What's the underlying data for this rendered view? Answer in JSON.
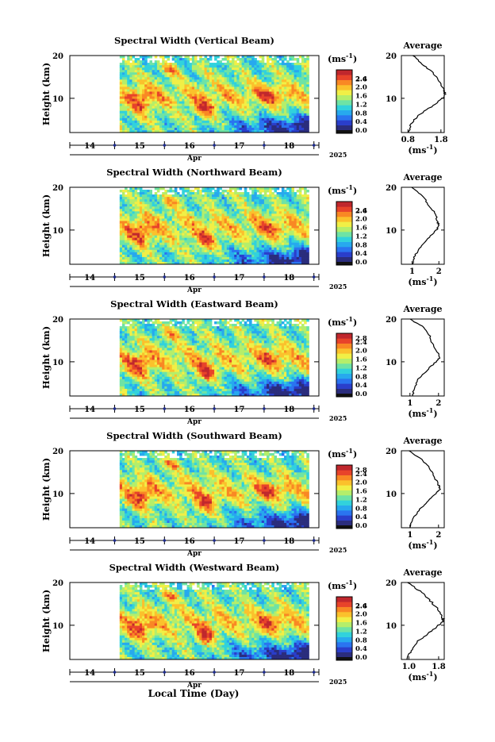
{
  "footer": {
    "xlabel": "Local Time (Day)"
  },
  "colorbar_unit": "(ms",
  "colorbar_unit_exp": "-1",
  "avg_title": "Average",
  "avg_xlabel": "(ms",
  "avg_xlabel_exp": "-1",
  "month_label": "Apr",
  "year_label": "2025",
  "y_axis_label": "Height (km)",
  "chart_data": [
    {
      "type": "heatmap",
      "title": "Spectral Width (Vertical Beam)",
      "ylabel": "Height (km)",
      "ylim": [
        2,
        20
      ],
      "yticks": [
        "20",
        "10"
      ],
      "xticks": [
        "14",
        "15",
        "16",
        "17",
        "18"
      ],
      "xlim": [
        13.6,
        18.6
      ],
      "data_start": 14.6,
      "data_end": 18.4,
      "colorbar": {
        "ticks": [
          "2.6",
          "2.4",
          "2.0",
          "1.6",
          "1.2",
          "0.8",
          "0.4",
          "0.0"
        ],
        "range": [
          0.0,
          2.8
        ]
      },
      "average_profile": {
        "xlim": [
          0.6,
          1.9
        ],
        "xticks": [
          "0.8",
          "1.8"
        ],
        "yticks": [
          "20",
          "10"
        ],
        "heights": [
          20,
          18,
          16,
          14,
          12,
          11,
          10,
          8,
          6,
          4,
          2
        ],
        "values": [
          0.95,
          1.25,
          1.55,
          1.75,
          1.9,
          1.92,
          1.85,
          1.5,
          1.1,
          0.9,
          0.8
        ]
      }
    },
    {
      "type": "heatmap",
      "title": "Spectral Width (Northward Beam)",
      "ylabel": "Height (km)",
      "ylim": [
        2,
        20
      ],
      "yticks": [
        "20",
        "10"
      ],
      "xticks": [
        "14",
        "15",
        "16",
        "17",
        "18"
      ],
      "xlim": [
        13.6,
        18.6
      ],
      "data_start": 14.6,
      "data_end": 18.4,
      "colorbar": {
        "ticks": [
          "2.6",
          "2.4",
          "2.0",
          "1.6",
          "1.2",
          "0.8",
          "0.4",
          "0.0"
        ],
        "range": [
          0.0,
          2.8
        ]
      },
      "average_profile": {
        "xlim": [
          0.6,
          2.2
        ],
        "xticks": [
          "1",
          "2"
        ],
        "yticks": [
          "20",
          "10"
        ],
        "heights": [
          20,
          18,
          16,
          14,
          12,
          11,
          10,
          8,
          6,
          4,
          2
        ],
        "values": [
          1.0,
          1.4,
          1.6,
          1.85,
          1.95,
          2.0,
          1.9,
          1.6,
          1.3,
          1.1,
          1.0
        ]
      }
    },
    {
      "type": "heatmap",
      "title": "Spectral Width (Eastward Beam)",
      "ylabel": "Height (km)",
      "ylim": [
        2,
        20
      ],
      "yticks": [
        "20",
        "10"
      ],
      "xticks": [
        "14",
        "15",
        "16",
        "17",
        "18"
      ],
      "xlim": [
        13.6,
        18.6
      ],
      "data_start": 14.6,
      "data_end": 18.4,
      "colorbar": {
        "ticks": [
          "2.8",
          "2.4",
          "2.0",
          "1.6",
          "1.2",
          "0.8",
          "0.4",
          "0.0"
        ],
        "range": [
          0.0,
          2.8
        ]
      },
      "average_profile": {
        "xlim": [
          0.7,
          2.2
        ],
        "xticks": [
          "1",
          "2"
        ],
        "yticks": [
          "20",
          "10"
        ],
        "heights": [
          20,
          18,
          16,
          14,
          12,
          11,
          10,
          8,
          6,
          4,
          2
        ],
        "values": [
          1.0,
          1.5,
          1.7,
          1.8,
          2.0,
          2.05,
          1.9,
          1.6,
          1.3,
          1.15,
          1.1
        ]
      }
    },
    {
      "type": "heatmap",
      "title": "Spectral Width (Southward Beam)",
      "ylabel": "Height (km)",
      "ylim": [
        2,
        20
      ],
      "yticks": [
        "20",
        "10"
      ],
      "xticks": [
        "14",
        "15",
        "16",
        "17",
        "18"
      ],
      "xlim": [
        13.6,
        18.6
      ],
      "data_start": 14.6,
      "data_end": 18.4,
      "colorbar": {
        "ticks": [
          "2.8",
          "2.4",
          "2.0",
          "1.6",
          "1.2",
          "0.8",
          "0.4",
          "0.0"
        ],
        "range": [
          0.0,
          2.8
        ]
      },
      "average_profile": {
        "xlim": [
          0.7,
          2.2
        ],
        "xticks": [
          "1",
          "2"
        ],
        "yticks": [
          "20",
          "10"
        ],
        "heights": [
          20,
          18,
          16,
          14,
          12,
          11,
          10,
          8,
          6,
          4,
          2
        ],
        "values": [
          0.95,
          1.4,
          1.7,
          1.85,
          2.0,
          2.05,
          1.9,
          1.6,
          1.3,
          1.1,
          1.0
        ]
      }
    },
    {
      "type": "heatmap",
      "title": "Spectral Width (Westward Beam)",
      "ylabel": "Height (km)",
      "ylim": [
        2,
        20
      ],
      "yticks": [
        "20",
        "10"
      ],
      "xticks": [
        "14",
        "15",
        "16",
        "17",
        "18"
      ],
      "xlim": [
        13.6,
        18.6
      ],
      "data_start": 14.6,
      "data_end": 18.4,
      "colorbar": {
        "ticks": [
          "2.6",
          "2.4",
          "2.0",
          "1.6",
          "1.2",
          "0.8",
          "0.4",
          "0.0"
        ],
        "range": [
          0.0,
          2.8
        ]
      },
      "average_profile": {
        "xlim": [
          0.8,
          1.95
        ],
        "xticks": [
          "1.0",
          "1.8"
        ],
        "yticks": [
          "20",
          "10"
        ],
        "heights": [
          20,
          18,
          16,
          14,
          12,
          11,
          10,
          8,
          6,
          4,
          2
        ],
        "values": [
          0.95,
          1.3,
          1.55,
          1.75,
          1.9,
          1.92,
          1.8,
          1.5,
          1.2,
          1.05,
          0.95
        ]
      }
    }
  ],
  "colors": {
    "cmap": [
      "#2b2d7d",
      "#2a3ecb",
      "#2a74f0",
      "#27a9ee",
      "#31d2dc",
      "#6ee3a5",
      "#b5ee6a",
      "#f1ef46",
      "#fbc12c",
      "#f98824",
      "#e8432a",
      "#c0272d"
    ]
  }
}
